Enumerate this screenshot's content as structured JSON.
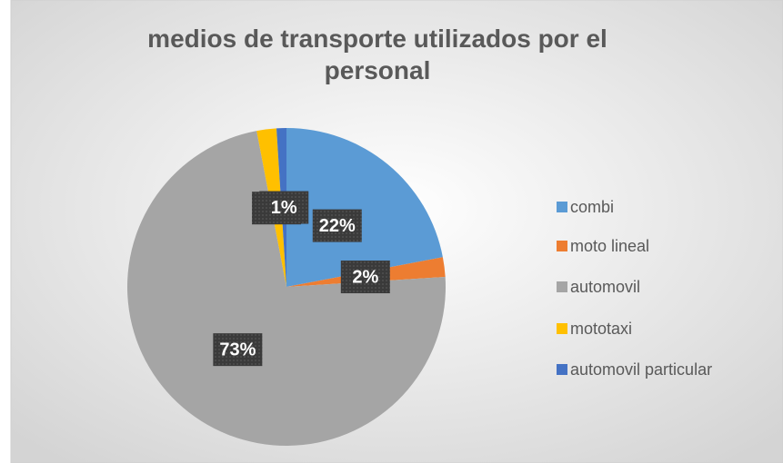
{
  "chart_data": {
    "type": "pie",
    "title": "medios de transporte utilizados por el personal",
    "categories": [
      "combi",
      "moto lineal",
      "automovil",
      "mototaxi",
      "automovil particular"
    ],
    "values": [
      22,
      2,
      73,
      2,
      1
    ],
    "value_labels": [
      "22%",
      "2%",
      "73%",
      "2%",
      "1%"
    ],
    "colors": [
      "#5b9bd5",
      "#ed7d31",
      "#a5a5a5",
      "#ffc000",
      "#4472c4"
    ],
    "legend": "right"
  }
}
